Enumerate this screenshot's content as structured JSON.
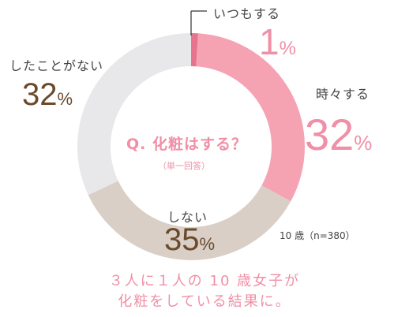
{
  "chart_data": {
    "type": "pie",
    "title": "Q. 化粧はする？",
    "subtitle": "（単一回答）",
    "note": "10 歳（n=380）",
    "slices": [
      {
        "label": "いつもする",
        "value": 1,
        "display": "1",
        "unit": "%",
        "color": "#e8738f"
      },
      {
        "label": "時々する",
        "value": 32,
        "display": "32",
        "unit": "%",
        "color": "#f5a3b3"
      },
      {
        "label": "しない",
        "value": 35,
        "display": "35",
        "unit": "%",
        "color": "#d9cfc7"
      },
      {
        "label": "したことがない",
        "value": 32,
        "display": "32",
        "unit": "%",
        "color": "#e8e8ea"
      }
    ]
  },
  "footer": {
    "line1": "３人に１人の 10 歳女子が",
    "line2": "化粧をしている結果に。"
  }
}
